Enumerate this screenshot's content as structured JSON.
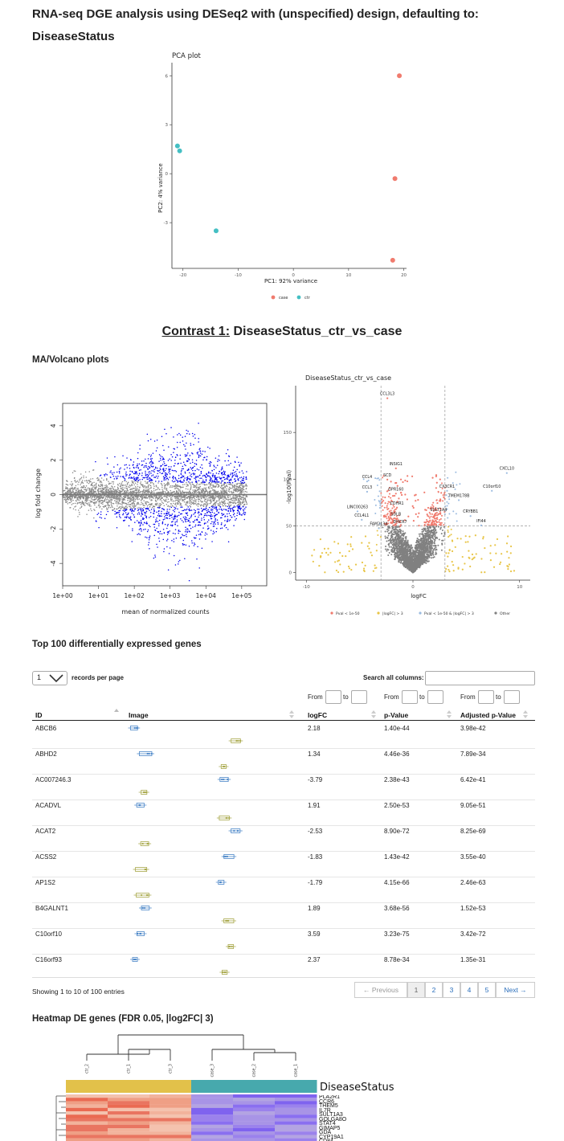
{
  "header": {
    "title": "RNA-seq DGE analysis using DESeq2 with (unspecified) design, defaulting to: DiseaseStatus"
  },
  "pca": {
    "chart_data": {
      "type": "scatter",
      "title": "PCA plot",
      "xlabel": "PC1: 92% variance",
      "ylabel": "PC2: 4% variance",
      "xticks": [
        "-20",
        "-10",
        "0",
        "10",
        "20"
      ],
      "yticks": [
        "6",
        "3",
        "0",
        "-3"
      ],
      "xlim": [
        -22,
        20.5
      ],
      "ylim": [
        -5.8,
        6.8
      ],
      "series": [
        {
          "name": "case",
          "color": "#f07b6e",
          "x": [
            19.2,
            18.4,
            18.0
          ],
          "y": [
            6.0,
            -0.3,
            -5.3
          ]
        },
        {
          "name": "ctr",
          "color": "#44bfc3",
          "x": [
            -21.0,
            -20.6,
            -14.0
          ],
          "y": [
            1.7,
            1.4,
            -3.5
          ]
        }
      ],
      "legend": "bottom"
    }
  },
  "contrast": {
    "prefix": "Contrast 1:",
    "name": "DiseaseStatus_ctr_vs_case"
  },
  "ma_section_title": "MA/Volcano plots",
  "ma_plot": {
    "chart_data": {
      "type": "scatter",
      "xlabel": "mean of normalized counts",
      "ylabel": "log fold change",
      "xticks": [
        "1e+00",
        "1e+01",
        "1e+02",
        "1e+03",
        "1e+04",
        "1e+05"
      ],
      "yticks": [
        "4",
        "2",
        "0",
        "-2",
        "-4"
      ],
      "xlim": [
        1,
        500000
      ],
      "ylim": [
        -5.3,
        5.3
      ],
      "colors": {
        "significant": "#0000ee",
        "other": "#888888"
      },
      "log_x": true
    }
  },
  "volcano": {
    "chart_data": {
      "type": "scatter",
      "title": "DiseaseStatus_ctr_vs_case",
      "xlabel": "logFC",
      "ylabel": "-log10(Pval)",
      "xticks": [
        "-10",
        "0",
        "10"
      ],
      "yticks": [
        "150",
        "100",
        "50",
        "0"
      ],
      "xlim": [
        -11,
        11
      ],
      "ylim": [
        -8,
        200
      ],
      "thresholds": {
        "logfc": 3,
        "pval_line": 50
      },
      "labels": [
        {
          "text": "CCL3L3",
          "x": -2.4,
          "y": 190
        },
        {
          "text": "INSIG1",
          "x": -1.6,
          "y": 115
        },
        {
          "text": "CXCL10",
          "x": 8.8,
          "y": 110
        },
        {
          "text": "SCD",
          "x": -2.4,
          "y": 103
        },
        {
          "text": "CCL4",
          "x": -4.3,
          "y": 101
        },
        {
          "text": "CX3CR1",
          "x": 3.2,
          "y": 91
        },
        {
          "text": "C10orf10",
          "x": 7.4,
          "y": 91
        },
        {
          "text": "CCL3",
          "x": -4.3,
          "y": 90
        },
        {
          "text": "GPR160",
          "x": -1.6,
          "y": 88
        },
        {
          "text": "TMEM178B",
          "x": 4.3,
          "y": 81
        },
        {
          "text": "CDHR1",
          "x": -1.5,
          "y": 73
        },
        {
          "text": "LINC00263",
          "x": -5.2,
          "y": 69
        },
        {
          "text": "SULT1A4",
          "x": 2.4,
          "y": 66
        },
        {
          "text": "CRYBB1",
          "x": 5.4,
          "y": 64
        },
        {
          "text": "SDLB",
          "x": -1.6,
          "y": 61
        },
        {
          "text": "CCL4L1",
          "x": -4.8,
          "y": 60
        },
        {
          "text": "IFI44",
          "x": 6.4,
          "y": 54
        },
        {
          "text": "DHCR7",
          "x": -1.2,
          "y": 53
        },
        {
          "text": "FAM213A",
          "x": -3.2,
          "y": 51
        }
      ],
      "legend": [
        "Pval < 1e-50",
        "|logFC| > 3",
        "Pval < 1e-50 & |logFC| > 3",
        "Other"
      ],
      "legend_colors": [
        "#f07b6e",
        "#e8c547",
        "#9bbbe0",
        "#808080"
      ]
    }
  },
  "top_genes_title": "Top 100 differentially expressed genes",
  "table_controls": {
    "page_length": "1",
    "records_per_page": "records per page",
    "search_label": "Search all columns:",
    "search_value": "",
    "from": "From",
    "to": "to"
  },
  "table": {
    "columns": [
      "ID",
      "Image",
      "logFC",
      "p-Value",
      "Adjusted p-Value"
    ],
    "rows": [
      {
        "id": "ABCB6",
        "logfc": "2.18",
        "pval": "1.40e-44",
        "adj": "3.98e-42"
      },
      {
        "id": "ABHD2",
        "logfc": "1.34",
        "pval": "4.46e-36",
        "adj": "7.89e-34"
      },
      {
        "id": "AC007246.3",
        "logfc": "-3.79",
        "pval": "2.38e-43",
        "adj": "6.42e-41"
      },
      {
        "id": "ACADVL",
        "logfc": "1.91",
        "pval": "2.50e-53",
        "adj": "9.05e-51"
      },
      {
        "id": "ACAT2",
        "logfc": "-2.53",
        "pval": "8.90e-72",
        "adj": "8.25e-69"
      },
      {
        "id": "ACSS2",
        "logfc": "-1.83",
        "pval": "1.43e-42",
        "adj": "3.55e-40"
      },
      {
        "id": "AP1S2",
        "logfc": "-1.79",
        "pval": "4.15e-66",
        "adj": "2.46e-63"
      },
      {
        "id": "B4GALNT1",
        "logfc": "1.89",
        "pval": "3.68e-56",
        "adj": "1.52e-53"
      },
      {
        "id": "C10orf10",
        "logfc": "3.59",
        "pval": "3.23e-75",
        "adj": "3.42e-72"
      },
      {
        "id": "C16orf93",
        "logfc": "2.37",
        "pval": "8.78e-34",
        "adj": "1.35e-31"
      }
    ],
    "info": "Showing 1 to 10 of 100 entries",
    "pager": {
      "prev": "← Previous",
      "pages": [
        "1",
        "2",
        "3",
        "4",
        "5"
      ],
      "next": "Next →"
    }
  },
  "heatmap": {
    "title": "Heatmap DE genes (FDR 0.05, |log2FC| 3)",
    "samples": [
      "ctr_2",
      "ctr_1",
      "ctr_3",
      "case_3",
      "case_2",
      "case_1"
    ],
    "annotation_label": "DiseaseStatus",
    "annotation_colors": {
      "ctr": "#e2c14a",
      "case": "#47a9ad"
    },
    "genes": [
      "PLA2R1",
      "CCR6",
      "THEM5",
      "IL7R",
      "SULT1A3",
      "GOLGA8O",
      "STAT4",
      "GIMAP5",
      "GDA",
      "CYP19A1",
      "CD84"
    ]
  }
}
